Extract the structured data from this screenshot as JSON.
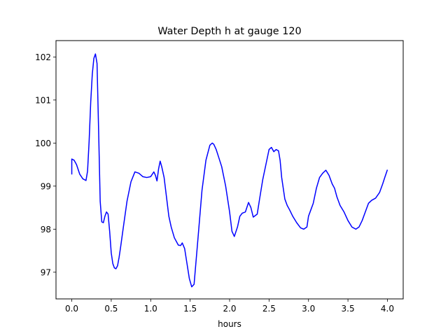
{
  "chart_data": {
    "type": "line",
    "title": "Water Depth h at gauge 120",
    "xlabel": "hours",
    "ylabel": "",
    "xlim": [
      -0.2,
      4.2
    ],
    "ylim": [
      96.38,
      102.38
    ],
    "xticks": [
      0.0,
      0.5,
      1.0,
      1.5,
      2.0,
      2.5,
      3.0,
      3.5,
      4.0
    ],
    "xtick_labels": [
      "0.0",
      "0.5",
      "1.0",
      "1.5",
      "2.0",
      "2.5",
      "3.0",
      "3.5",
      "4.0"
    ],
    "yticks": [
      97,
      98,
      99,
      100,
      101,
      102
    ],
    "ytick_labels": [
      "97",
      "98",
      "99",
      "100",
      "101",
      "102"
    ],
    "grid": false,
    "series": [
      {
        "color": "#0000ff",
        "x": [
          0.0,
          0.0,
          0.03,
          0.06,
          0.1,
          0.14,
          0.18,
          0.2,
          0.22,
          0.24,
          0.26,
          0.28,
          0.3,
          0.32,
          0.34,
          0.36,
          0.38,
          0.4,
          0.42,
          0.44,
          0.46,
          0.48,
          0.5,
          0.52,
          0.54,
          0.56,
          0.58,
          0.6,
          0.62,
          0.65,
          0.7,
          0.75,
          0.8,
          0.85,
          0.9,
          0.95,
          1.0,
          1.04,
          1.06,
          1.08,
          1.1,
          1.12,
          1.14,
          1.17,
          1.2,
          1.23,
          1.26,
          1.3,
          1.35,
          1.38,
          1.4,
          1.43,
          1.46,
          1.49,
          1.52,
          1.55,
          1.6,
          1.65,
          1.7,
          1.75,
          1.78,
          1.8,
          1.83,
          1.86,
          1.9,
          1.95,
          2.0,
          2.03,
          2.06,
          2.1,
          2.13,
          2.16,
          2.2,
          2.24,
          2.27,
          2.3,
          2.35,
          2.38,
          2.42,
          2.46,
          2.5,
          2.53,
          2.56,
          2.59,
          2.62,
          2.64,
          2.66,
          2.7,
          2.73,
          2.76,
          2.8,
          2.85,
          2.9,
          2.94,
          2.98,
          3.0,
          3.03,
          3.06,
          3.1,
          3.14,
          3.18,
          3.22,
          3.26,
          3.3,
          3.33,
          3.36,
          3.4,
          3.45,
          3.5,
          3.55,
          3.6,
          3.64,
          3.68,
          3.72,
          3.76,
          3.8,
          3.85,
          3.9,
          3.94,
          3.97,
          4.0
        ],
        "y": [
          99.27,
          99.63,
          99.6,
          99.5,
          99.28,
          99.17,
          99.13,
          99.35,
          100.05,
          100.95,
          101.6,
          101.97,
          102.07,
          101.85,
          100.3,
          98.65,
          98.17,
          98.15,
          98.3,
          98.4,
          98.35,
          97.95,
          97.45,
          97.2,
          97.1,
          97.08,
          97.15,
          97.35,
          97.6,
          98.0,
          98.65,
          99.1,
          99.33,
          99.3,
          99.22,
          99.2,
          99.22,
          99.33,
          99.25,
          99.12,
          99.4,
          99.58,
          99.45,
          99.2,
          98.75,
          98.3,
          98.05,
          97.8,
          97.63,
          97.62,
          97.68,
          97.55,
          97.2,
          96.85,
          96.66,
          96.72,
          97.8,
          98.9,
          99.6,
          99.95,
          100.0,
          99.97,
          99.85,
          99.68,
          99.45,
          99.0,
          98.4,
          97.95,
          97.83,
          98.05,
          98.3,
          98.37,
          98.4,
          98.62,
          98.5,
          98.28,
          98.35,
          98.7,
          99.15,
          99.5,
          99.85,
          99.9,
          99.8,
          99.85,
          99.82,
          99.6,
          99.2,
          98.7,
          98.55,
          98.45,
          98.3,
          98.15,
          98.03,
          98.0,
          98.05,
          98.3,
          98.45,
          98.6,
          98.95,
          99.2,
          99.3,
          99.37,
          99.25,
          99.05,
          98.95,
          98.75,
          98.55,
          98.4,
          98.2,
          98.05,
          98.0,
          98.05,
          98.2,
          98.4,
          98.6,
          98.67,
          98.72,
          98.85,
          99.05,
          99.22,
          99.38
        ]
      }
    ]
  }
}
